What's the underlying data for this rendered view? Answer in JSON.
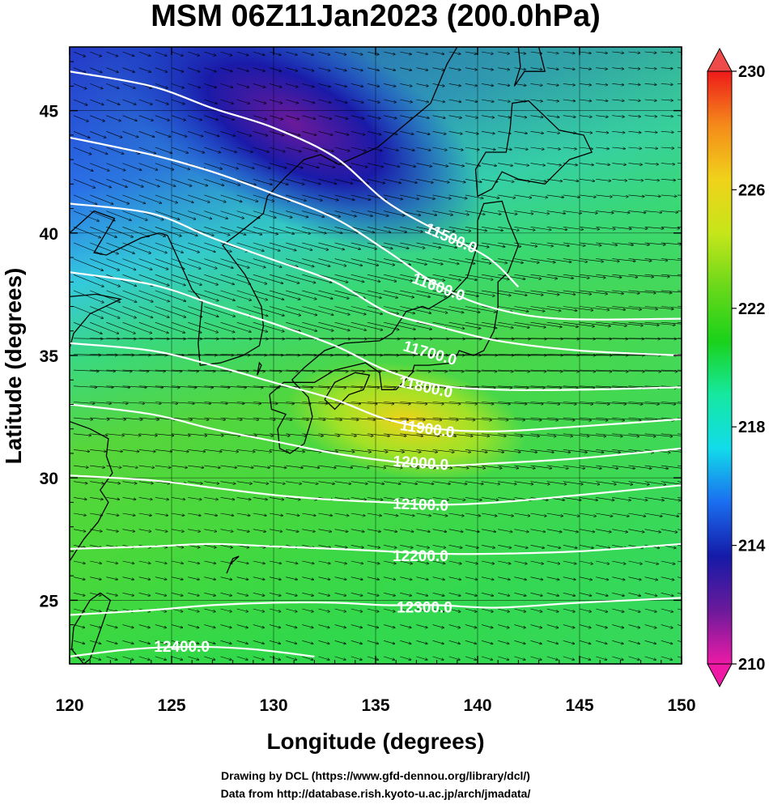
{
  "title": "MSM 06Z11Jan2023 (200.0hPa)",
  "credits": [
    "Drawing by DCL (https://www.gfd-dennou.org/library/dcl/)",
    "Data from http://database.rish.kyoto-u.ac.jp/arch/jmadata/"
  ],
  "chart_data": {
    "type": "heatmap",
    "title": "MSM 06Z11Jan2023 (200.0hPa)",
    "xlabel": "Longitude (degrees)",
    "ylabel": "Latitude  (degrees)",
    "xlim": [
      120,
      150
    ],
    "ylim": [
      22.4,
      47.6
    ],
    "x_ticks": [
      120,
      125,
      130,
      135,
      140,
      145,
      150
    ],
    "y_ticks": [
      25,
      30,
      35,
      40,
      45
    ],
    "grid": true,
    "colorbar": {
      "min": 210,
      "max": 230,
      "ticks": [
        210,
        214,
        218,
        222,
        226,
        230
      ],
      "colors": [
        "#ee1aa6",
        "#6a1a9a",
        "#141aa8",
        "#1a6ef0",
        "#12dcea",
        "#16e8a0",
        "#1ad21a",
        "#6ad81a",
        "#c6e61a",
        "#f0d21a",
        "#f58a1a",
        "#ee1a1a"
      ]
    },
    "field_features": [
      {
        "name": "cold-core",
        "lon": 131,
        "lat": 44.5,
        "value": 212.5
      },
      {
        "name": "warm-spot",
        "lon": 136.5,
        "lat": 32.3,
        "value": 225
      }
    ],
    "contours": [
      {
        "label": "11500.0",
        "points": [
          [
            120,
            46.6
          ],
          [
            124,
            46.0
          ],
          [
            127,
            45.1
          ],
          [
            130,
            44.3
          ],
          [
            133,
            43.1
          ],
          [
            135.5,
            41.3
          ],
          [
            138,
            40.1
          ],
          [
            140.5,
            39.0
          ],
          [
            142,
            37.8
          ]
        ]
      },
      {
        "label": "11600.0",
        "points": [
          [
            120,
            43.9
          ],
          [
            124,
            43.2
          ],
          [
            127,
            42.5
          ],
          [
            130,
            41.6
          ],
          [
            133,
            40.6
          ],
          [
            135.5,
            39.3
          ],
          [
            138,
            37.9
          ],
          [
            140.5,
            37.0
          ],
          [
            144,
            36.5
          ],
          [
            150,
            36.5
          ]
        ]
      },
      {
        "label": "11700.0",
        "points": [
          [
            120,
            41.2
          ],
          [
            124,
            40.8
          ],
          [
            127,
            39.8
          ],
          [
            130,
            38.9
          ],
          [
            133,
            38.0
          ],
          [
            135.5,
            36.8
          ],
          [
            138,
            36.2
          ],
          [
            141,
            35.6
          ],
          [
            145,
            35.2
          ],
          [
            150,
            35.0
          ]
        ]
      },
      {
        "label": "11800.0",
        "points": [
          [
            120,
            38.4
          ],
          [
            124,
            37.9
          ],
          [
            127,
            37.1
          ],
          [
            130,
            36.3
          ],
          [
            133,
            35.4
          ],
          [
            135.5,
            34.4
          ],
          [
            138,
            33.8
          ],
          [
            141,
            33.6
          ],
          [
            145,
            33.6
          ],
          [
            150,
            33.7
          ]
        ]
      },
      {
        "label": "11900.0",
        "points": [
          [
            120,
            35.5
          ],
          [
            124,
            35.2
          ],
          [
            127,
            34.6
          ],
          [
            130,
            33.9
          ],
          [
            133,
            33.2
          ],
          [
            135.5,
            32.4
          ],
          [
            138,
            32.0
          ],
          [
            141,
            31.9
          ],
          [
            145,
            32.1
          ],
          [
            150,
            32.4
          ]
        ]
      },
      {
        "label": "12000.0",
        "points": [
          [
            120,
            33.0
          ],
          [
            124,
            32.6
          ],
          [
            127,
            32.0
          ],
          [
            130,
            31.5
          ],
          [
            133,
            31.0
          ],
          [
            135.5,
            30.7
          ],
          [
            138,
            30.5
          ],
          [
            141,
            30.6
          ],
          [
            145,
            30.8
          ],
          [
            150,
            31.2
          ]
        ]
      },
      {
        "label": "12100.0",
        "points": [
          [
            120,
            30.1
          ],
          [
            124,
            29.9
          ],
          [
            127,
            29.6
          ],
          [
            130,
            29.3
          ],
          [
            133,
            29.1
          ],
          [
            135.5,
            29.0
          ],
          [
            138,
            28.9
          ],
          [
            141,
            29.0
          ],
          [
            145,
            29.3
          ],
          [
            150,
            29.7
          ]
        ]
      },
      {
        "label": "12200.0",
        "points": [
          [
            120,
            27.1
          ],
          [
            124,
            27.2
          ],
          [
            127,
            27.3
          ],
          [
            130,
            27.2
          ],
          [
            133,
            27.1
          ],
          [
            135.5,
            27.0
          ],
          [
            138,
            26.9
          ],
          [
            141,
            26.9
          ],
          [
            145,
            27.0
          ],
          [
            150,
            27.3
          ]
        ]
      },
      {
        "label": "12300.0",
        "points": [
          [
            120,
            24.4
          ],
          [
            124,
            24.6
          ],
          [
            127,
            24.8
          ],
          [
            130,
            24.9
          ],
          [
            133,
            24.9
          ],
          [
            135.5,
            24.8
          ],
          [
            138,
            24.8
          ],
          [
            141,
            24.7
          ],
          [
            145,
            24.9
          ],
          [
            150,
            25.1
          ]
        ]
      },
      {
        "label": "12400.0",
        "points": [
          [
            120,
            22.7
          ],
          [
            123,
            23.0
          ],
          [
            126,
            23.1
          ],
          [
            129,
            23.0
          ],
          [
            132,
            22.7
          ]
        ]
      }
    ],
    "contour_labels": [
      {
        "text": "11500.0",
        "lon": 138.6,
        "lat": 39.6,
        "angle": 23
      },
      {
        "text": "11600.0",
        "lon": 138.0,
        "lat": 37.6,
        "angle": 20
      },
      {
        "text": "11700.0",
        "lon": 137.6,
        "lat": 34.9,
        "angle": 16
      },
      {
        "text": "11800.0",
        "lon": 137.4,
        "lat": 33.5,
        "angle": 12
      },
      {
        "text": "11900.0",
        "lon": 137.5,
        "lat": 31.8,
        "angle": 8
      },
      {
        "text": "12000.0",
        "lon": 137.2,
        "lat": 30.4,
        "angle": 4
      },
      {
        "text": "12100.0",
        "lon": 137.2,
        "lat": 28.7,
        "angle": 2
      },
      {
        "text": "12200.0",
        "lon": 137.2,
        "lat": 26.6,
        "angle": 0
      },
      {
        "text": "12300.0",
        "lon": 137.4,
        "lat": 24.5,
        "angle": 0
      },
      {
        "text": "12400.0",
        "lon": 125.5,
        "lat": 22.9,
        "angle": 0
      }
    ],
    "wind": {
      "description": "westerly wind vectors, strongest along the jet near 35-40N",
      "spacing_deg_lon": 0.8,
      "spacing_deg_lat": 0.65
    },
    "coastlines": [
      {
        "name": "honshu",
        "points": [
          [
            130.9,
            34.0
          ],
          [
            131.5,
            34.5
          ],
          [
            132.5,
            35.2
          ],
          [
            133.5,
            35.5
          ],
          [
            135.2,
            35.6
          ],
          [
            135.8,
            35.9
          ],
          [
            136.5,
            36.8
          ],
          [
            137.3,
            37.0
          ],
          [
            137.6,
            36.9
          ],
          [
            138.6,
            37.4
          ],
          [
            139.5,
            38.2
          ],
          [
            140.0,
            39.5
          ],
          [
            140.0,
            40.5
          ],
          [
            140.3,
            41.2
          ],
          [
            141.2,
            41.3
          ],
          [
            141.5,
            40.5
          ],
          [
            142.0,
            39.5
          ],
          [
            141.5,
            38.4
          ],
          [
            141.0,
            38.0
          ],
          [
            141.0,
            37.0
          ],
          [
            140.8,
            36.0
          ],
          [
            140.3,
            35.2
          ],
          [
            139.8,
            35.0
          ],
          [
            139.1,
            35.2
          ],
          [
            138.8,
            34.7
          ],
          [
            137.6,
            34.6
          ],
          [
            136.9,
            34.6
          ],
          [
            136.8,
            34.3
          ],
          [
            136.0,
            33.6
          ],
          [
            135.3,
            33.6
          ],
          [
            135.2,
            34.3
          ],
          [
            134.5,
            34.7
          ],
          [
            133.0,
            34.4
          ],
          [
            132.0,
            33.9
          ],
          [
            131.0,
            33.9
          ],
          [
            130.9,
            34.0
          ]
        ]
      },
      {
        "name": "hokkaido",
        "points": [
          [
            140.0,
            41.5
          ],
          [
            140.7,
            41.8
          ],
          [
            141.2,
            42.5
          ],
          [
            142.0,
            42.2
          ],
          [
            143.3,
            42.0
          ],
          [
            144.5,
            43.0
          ],
          [
            145.6,
            43.3
          ],
          [
            145.2,
            44.0
          ],
          [
            144.0,
            44.2
          ],
          [
            142.5,
            45.4
          ],
          [
            141.7,
            45.3
          ],
          [
            141.6,
            44.3
          ],
          [
            141.4,
            43.3
          ],
          [
            140.4,
            43.3
          ],
          [
            139.9,
            42.6
          ],
          [
            140.0,
            41.5
          ]
        ]
      },
      {
        "name": "kyushu",
        "points": [
          [
            129.8,
            33.4
          ],
          [
            130.5,
            33.9
          ],
          [
            131.0,
            33.9
          ],
          [
            131.7,
            33.3
          ],
          [
            131.9,
            32.5
          ],
          [
            131.5,
            31.4
          ],
          [
            130.8,
            31.0
          ],
          [
            130.3,
            31.2
          ],
          [
            130.2,
            32.0
          ],
          [
            130.6,
            32.6
          ],
          [
            129.9,
            32.8
          ],
          [
            129.8,
            33.4
          ]
        ]
      },
      {
        "name": "shikoku",
        "points": [
          [
            132.5,
            33.2
          ],
          [
            133.0,
            33.9
          ],
          [
            134.0,
            34.3
          ],
          [
            134.7,
            34.2
          ],
          [
            134.4,
            33.6
          ],
          [
            133.7,
            33.4
          ],
          [
            133.0,
            32.8
          ],
          [
            132.5,
            33.2
          ]
        ]
      },
      {
        "name": "korea",
        "points": [
          [
            124.8,
            39.9
          ],
          [
            125.4,
            38.8
          ],
          [
            126.0,
            37.7
          ],
          [
            126.5,
            37.2
          ],
          [
            126.3,
            35.5
          ],
          [
            126.4,
            34.6
          ],
          [
            127.4,
            34.7
          ],
          [
            128.5,
            35.0
          ],
          [
            129.3,
            35.4
          ],
          [
            129.5,
            36.2
          ],
          [
            129.4,
            37.0
          ],
          [
            128.6,
            38.3
          ],
          [
            127.5,
            39.5
          ],
          [
            128.3,
            40.0
          ],
          [
            129.5,
            40.8
          ],
          [
            129.7,
            41.5
          ],
          [
            130.6,
            42.3
          ]
        ]
      },
      {
        "name": "russia-coast",
        "points": [
          [
            130.6,
            42.3
          ],
          [
            131.5,
            43.0
          ],
          [
            132.3,
            43.2
          ],
          [
            133.2,
            42.8
          ],
          [
            135.1,
            43.5
          ],
          [
            137.7,
            45.3
          ],
          [
            138.5,
            46.9
          ],
          [
            139.0,
            47.6
          ]
        ]
      },
      {
        "name": "sakhalin",
        "points": [
          [
            141.8,
            46.0
          ],
          [
            142.3,
            46.6
          ],
          [
            143.3,
            46.6
          ],
          [
            143.0,
            47.6
          ],
          [
            142.0,
            47.6
          ],
          [
            142.1,
            46.8
          ],
          [
            141.8,
            46.0
          ]
        ]
      },
      {
        "name": "china-north",
        "points": [
          [
            120.0,
            40.0
          ],
          [
            121.2,
            40.9
          ],
          [
            122.2,
            40.6
          ],
          [
            121.2,
            39.2
          ],
          [
            121.8,
            39.1
          ],
          [
            123.5,
            39.8
          ],
          [
            124.4,
            40.0
          ],
          [
            124.8,
            39.9
          ]
        ]
      },
      {
        "name": "shandong-to-taiwan-strait",
        "points": [
          [
            120.0,
            37.4
          ],
          [
            121.3,
            37.5
          ],
          [
            122.5,
            37.3
          ],
          [
            121.0,
            36.7
          ],
          [
            120.2,
            35.9
          ],
          [
            120.0,
            35.3
          ]
        ]
      },
      {
        "name": "china-east",
        "points": [
          [
            120.0,
            32.3
          ],
          [
            121.0,
            32.0
          ],
          [
            121.9,
            31.6
          ],
          [
            121.8,
            30.9
          ],
          [
            122.1,
            30.2
          ],
          [
            121.5,
            29.5
          ],
          [
            121.9,
            29.0
          ],
          [
            121.4,
            28.2
          ],
          [
            120.7,
            27.5
          ],
          [
            120.0,
            26.6
          ]
        ]
      },
      {
        "name": "taiwan",
        "points": [
          [
            121.5,
            25.3
          ],
          [
            122.0,
            25.0
          ],
          [
            121.6,
            24.0
          ],
          [
            121.0,
            22.6
          ],
          [
            120.7,
            22.4
          ],
          [
            120.1,
            23.0
          ],
          [
            120.2,
            23.9
          ],
          [
            121.0,
            25.0
          ],
          [
            121.5,
            25.3
          ]
        ]
      },
      {
        "name": "ryukyu",
        "points": [
          [
            127.7,
            26.1
          ],
          [
            127.9,
            26.5
          ],
          [
            128.3,
            26.8
          ],
          [
            128.0,
            26.7
          ],
          [
            127.7,
            26.1
          ]
        ]
      },
      {
        "name": "tsushima",
        "points": [
          [
            129.2,
            34.2
          ],
          [
            129.4,
            34.6
          ],
          [
            129.3,
            34.7
          ],
          [
            129.2,
            34.2
          ]
        ]
      }
    ]
  }
}
